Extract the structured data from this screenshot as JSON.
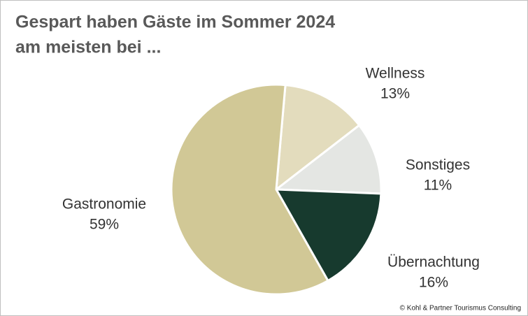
{
  "chart_data": {
    "type": "pie",
    "title": "Gespart haben Gäste im Sommer 2024",
    "subtitle": "am meisten bei ...",
    "categories": [
      "Wellness",
      "Sonstiges",
      "Übernachtung",
      "Gastronomie"
    ],
    "values": [
      13,
      11,
      16,
      59
    ],
    "value_labels": [
      "13%",
      "11%",
      "16%",
      "59%"
    ],
    "colors": [
      "#e3dcbd",
      "#e4e6e3",
      "#173a2e",
      "#d1c896"
    ],
    "source": "© Kohl & Partner Tourismus Consulting"
  }
}
